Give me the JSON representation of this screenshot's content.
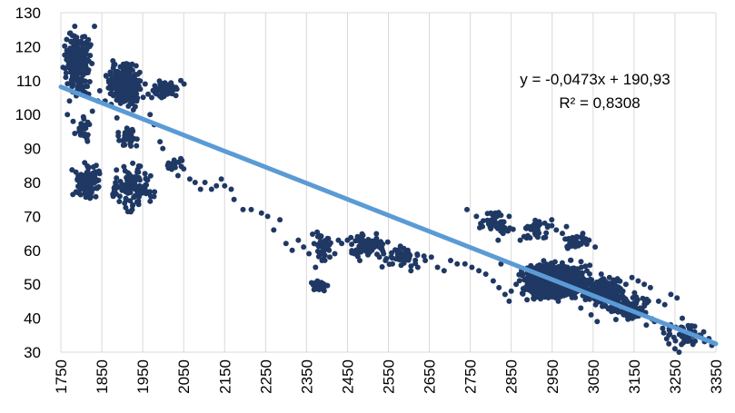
{
  "chart_data": {
    "type": "scatter",
    "title": "",
    "xlabel": "",
    "ylabel": "",
    "xlim": [
      1750,
      3350
    ],
    "ylim": [
      30,
      130
    ],
    "xticks": [
      1750,
      1850,
      1950,
      2050,
      2150,
      2250,
      2350,
      2450,
      2550,
      2650,
      2750,
      2850,
      2950,
      3050,
      3150,
      3250,
      3350
    ],
    "yticks": [
      30,
      40,
      50,
      60,
      70,
      80,
      90,
      100,
      110,
      120,
      130
    ],
    "xtick_labels": [
      "1750",
      "1850",
      "1950",
      "2050",
      "2150",
      "2250",
      "2350",
      "2450",
      "2550",
      "2650",
      "2750",
      "2850",
      "2950",
      "3050",
      "3150",
      "3250",
      "3350"
    ],
    "ytick_labels": [
      "30",
      "40",
      "50",
      "60",
      "70",
      "80",
      "90",
      "100",
      "110",
      "120",
      "130"
    ],
    "grid": "vertical",
    "legend": "none",
    "colors": {
      "points": "#1f3864",
      "trendline": "#5b9bd5",
      "grid": "#d9d9d9"
    },
    "trendline": {
      "slope": -0.0473,
      "intercept": 190.93,
      "r2": 0.8308
    },
    "equation_text": "y = -0,0473x + 190,93",
    "r2_text": "R² = 0,8308",
    "clusters": [
      {
        "x": [
          1750,
          1830
        ],
        "y": [
          105,
          126
        ],
        "n": 260
      },
      {
        "x": [
          1850,
          1960
        ],
        "y": [
          100,
          117
        ],
        "n": 220
      },
      {
        "x": [
          1960,
          2050
        ],
        "y": [
          104,
          111
        ],
        "n": 40
      },
      {
        "x": [
          1770,
          1860
        ],
        "y": [
          72,
          87
        ],
        "n": 90
      },
      {
        "x": [
          1860,
          1990
        ],
        "y": [
          70,
          88
        ],
        "n": 120
      },
      {
        "x": [
          1780,
          1830
        ],
        "y": [
          90,
          102
        ],
        "n": 25
      },
      {
        "x": [
          1880,
          1950
        ],
        "y": [
          88,
          98
        ],
        "n": 35
      },
      {
        "x": [
          2000,
          2050
        ],
        "y": [
          83,
          88
        ],
        "n": 15
      },
      {
        "x": [
          2350,
          2410
        ],
        "y": [
          47,
          52
        ],
        "n": 35
      },
      {
        "x": [
          2360,
          2420
        ],
        "y": [
          55,
          67
        ],
        "n": 40
      },
      {
        "x": [
          2440,
          2560
        ],
        "y": [
          57,
          66
        ],
        "n": 80
      },
      {
        "x": [
          2520,
          2650
        ],
        "y": [
          54,
          62
        ],
        "n": 40
      },
      {
        "x": [
          2760,
          2870
        ],
        "y": [
          64,
          72
        ],
        "n": 50
      },
      {
        "x": [
          2860,
          2960
        ],
        "y": [
          62,
          70
        ],
        "n": 40
      },
      {
        "x": [
          2970,
          3040
        ],
        "y": [
          60,
          66
        ],
        "n": 30
      },
      {
        "x": [
          2850,
          3060
        ],
        "y": [
          44,
          58
        ],
        "n": 700
      },
      {
        "x": [
          3000,
          3150
        ],
        "y": [
          42,
          54
        ],
        "n": 200
      },
      {
        "x": [
          3080,
          3200
        ],
        "y": [
          38,
          48
        ],
        "n": 80
      },
      {
        "x": [
          3200,
          3340
        ],
        "y": [
          30,
          40
        ],
        "n": 40
      }
    ],
    "points": [
      [
        1762,
        111
      ],
      [
        1773,
        124
      ],
      [
        1796,
        121
      ],
      [
        1784,
        126
      ],
      [
        1808,
        123
      ],
      [
        1815,
        120
      ],
      [
        1832,
        126
      ],
      [
        1790,
        113
      ],
      [
        1805,
        108
      ],
      [
        1818,
        106
      ],
      [
        1771,
        104
      ],
      [
        1766,
        100
      ],
      [
        1780,
        98
      ],
      [
        1795,
        96
      ],
      [
        1827,
        101
      ],
      [
        1840,
        104
      ],
      [
        1845,
        107
      ],
      [
        1858,
        104
      ],
      [
        1873,
        103
      ],
      [
        1887,
        99
      ],
      [
        1897,
        106
      ],
      [
        1910,
        115
      ],
      [
        1925,
        113
      ],
      [
        1940,
        110
      ],
      [
        1956,
        109
      ],
      [
        1963,
        106
      ],
      [
        1972,
        105
      ],
      [
        1987,
        107
      ],
      [
        1996,
        105
      ],
      [
        2009,
        106
      ],
      [
        2018,
        107
      ],
      [
        2031,
        108
      ],
      [
        2043,
        110
      ],
      [
        2051,
        109
      ],
      [
        1968,
        100
      ],
      [
        1978,
        97
      ],
      [
        1992,
        92
      ],
      [
        1999,
        90
      ],
      [
        2011,
        85
      ],
      [
        2021,
        84
      ],
      [
        2036,
        82
      ],
      [
        2043,
        87
      ],
      [
        2050,
        84
      ],
      [
        2065,
        81
      ],
      [
        2078,
        80
      ],
      [
        2091,
        78
      ],
      [
        2102,
        80
      ],
      [
        2118,
        78
      ],
      [
        2130,
        79
      ],
      [
        2142,
        81
      ],
      [
        2150,
        79
      ],
      [
        2166,
        78
      ],
      [
        2173,
        75
      ],
      [
        2195,
        72
      ],
      [
        2215,
        72
      ],
      [
        2240,
        71
      ],
      [
        2255,
        70
      ],
      [
        2270,
        66
      ],
      [
        2285,
        69
      ],
      [
        2300,
        62
      ],
      [
        2315,
        60
      ],
      [
        2330,
        63
      ],
      [
        2343,
        61
      ],
      [
        2356,
        59
      ],
      [
        2372,
        55
      ],
      [
        2388,
        57
      ],
      [
        2393,
        62
      ],
      [
        2405,
        60
      ],
      [
        2419,
        59
      ],
      [
        2428,
        63
      ],
      [
        2436,
        62
      ],
      [
        2450,
        63
      ],
      [
        2467,
        59
      ],
      [
        2480,
        57
      ],
      [
        2498,
        61
      ],
      [
        2512,
        62
      ],
      [
        2528,
        58
      ],
      [
        2543,
        57
      ],
      [
        2560,
        56
      ],
      [
        2573,
        59
      ],
      [
        2590,
        57
      ],
      [
        2605,
        54
      ],
      [
        2622,
        55
      ],
      [
        2640,
        57
      ],
      [
        2655,
        58
      ],
      [
        2670,
        55
      ],
      [
        2686,
        54
      ],
      [
        2702,
        57
      ],
      [
        2718,
        56
      ],
      [
        2737,
        56
      ],
      [
        2754,
        55
      ],
      [
        2771,
        54
      ],
      [
        2788,
        53
      ],
      [
        2806,
        51
      ],
      [
        2820,
        49
      ],
      [
        2835,
        47
      ],
      [
        2845,
        45
      ],
      [
        2825,
        56
      ],
      [
        2818,
        63
      ],
      [
        2742,
        72
      ],
      [
        2765,
        70
      ],
      [
        2780,
        67
      ],
      [
        2800,
        71
      ],
      [
        2830,
        65
      ],
      [
        2845,
        70
      ],
      [
        2872,
        63
      ],
      [
        2890,
        67
      ],
      [
        2910,
        66
      ],
      [
        2932,
        68
      ],
      [
        2949,
        69
      ],
      [
        2960,
        66
      ],
      [
        2975,
        65
      ],
      [
        2985,
        67
      ],
      [
        3010,
        64
      ],
      [
        3025,
        65
      ],
      [
        3040,
        63
      ],
      [
        3055,
        61
      ],
      [
        3070,
        53
      ],
      [
        3090,
        52
      ],
      [
        3110,
        51
      ],
      [
        3130,
        50
      ],
      [
        3145,
        52
      ],
      [
        3160,
        51
      ],
      [
        3175,
        50
      ],
      [
        3190,
        49
      ],
      [
        3210,
        45
      ],
      [
        3225,
        44
      ],
      [
        3240,
        47
      ],
      [
        3255,
        46
      ],
      [
        3268,
        40
      ],
      [
        3285,
        37
      ],
      [
        3298,
        36
      ],
      [
        3310,
        35
      ],
      [
        3320,
        36
      ],
      [
        3333,
        34
      ],
      [
        3340,
        32
      ],
      [
        3250,
        31
      ],
      [
        3260,
        30
      ],
      [
        3272,
        34
      ],
      [
        3235,
        35
      ],
      [
        3220,
        37
      ],
      [
        3200,
        39
      ],
      [
        3180,
        38
      ],
      [
        3165,
        43
      ],
      [
        3150,
        41
      ],
      [
        3130,
        44
      ],
      [
        3115,
        46
      ],
      [
        3095,
        42
      ],
      [
        3080,
        45
      ],
      [
        3060,
        39
      ],
      [
        3045,
        41
      ],
      [
        3020,
        43
      ],
      [
        2995,
        47
      ],
      [
        2980,
        48
      ],
      [
        2965,
        45
      ],
      [
        2940,
        49
      ],
      [
        2920,
        51
      ],
      [
        2905,
        47
      ],
      [
        2890,
        52
      ],
      [
        2875,
        54
      ],
      [
        2862,
        50
      ],
      [
        2850,
        48
      ]
    ]
  }
}
